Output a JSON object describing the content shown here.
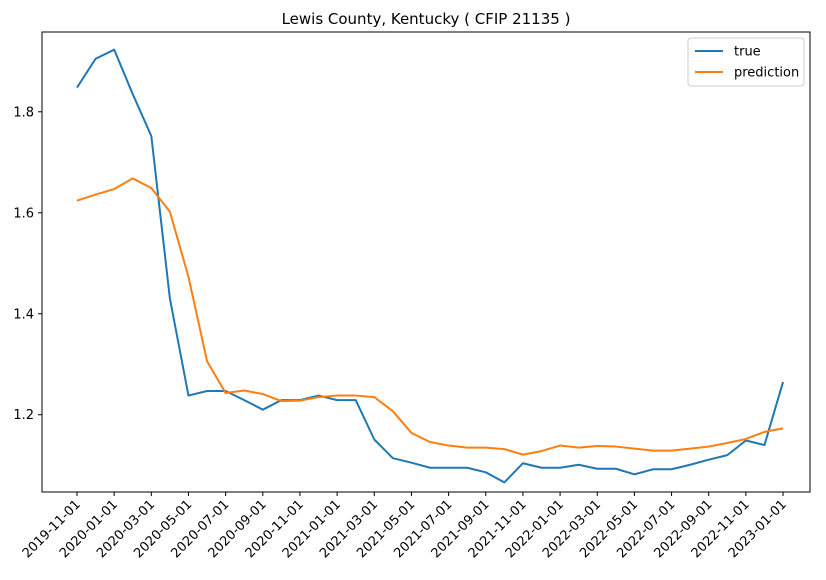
{
  "chart_data": {
    "type": "line",
    "title": "Lewis County, Kentucky ( CFIP 21135 )",
    "xlabel": "",
    "ylabel": "",
    "x": [
      "2019-11-01",
      "2019-12-01",
      "2020-01-01",
      "2020-02-01",
      "2020-03-01",
      "2020-04-01",
      "2020-05-01",
      "2020-06-01",
      "2020-07-01",
      "2020-08-01",
      "2020-09-01",
      "2020-10-01",
      "2020-11-01",
      "2020-12-01",
      "2021-01-01",
      "2021-02-01",
      "2021-03-01",
      "2021-04-01",
      "2021-05-01",
      "2021-06-01",
      "2021-07-01",
      "2021-08-01",
      "2021-09-01",
      "2021-10-01",
      "2021-11-01",
      "2021-12-01",
      "2022-01-01",
      "2022-02-01",
      "2022-03-01",
      "2022-04-01",
      "2022-05-01",
      "2022-06-01",
      "2022-07-01",
      "2022-08-01",
      "2022-09-01",
      "2022-10-01",
      "2022-11-01",
      "2022-12-01",
      "2023-01-01"
    ],
    "x_ticks": [
      "2019-11-01",
      "2020-01-01",
      "2020-03-01",
      "2020-05-01",
      "2020-07-01",
      "2020-09-01",
      "2020-11-01",
      "2021-01-01",
      "2021-03-01",
      "2021-05-01",
      "2021-07-01",
      "2021-09-01",
      "2021-11-01",
      "2022-01-01",
      "2022-03-01",
      "2022-05-01",
      "2022-07-01",
      "2022-09-01",
      "2022-11-01",
      "2023-01-01"
    ],
    "y_ticks": [
      1.2,
      1.4,
      1.6,
      1.8
    ],
    "ylim": [
      1.047,
      1.958
    ],
    "grid": false,
    "legend_position": "top-right",
    "series": [
      {
        "name": "true",
        "color": "#1f77b4",
        "values": [
          1.848,
          1.905,
          1.923,
          1.835,
          1.752,
          1.43,
          1.238,
          1.247,
          1.247,
          1.229,
          1.21,
          1.229,
          1.229,
          1.238,
          1.229,
          1.229,
          1.151,
          1.114,
          1.105,
          1.095,
          1.095,
          1.095,
          1.086,
          1.066,
          1.104,
          1.095,
          1.095,
          1.101,
          1.093,
          1.093,
          1.082,
          1.092,
          1.092,
          1.101,
          1.111,
          1.12,
          1.149,
          1.14,
          1.265
        ]
      },
      {
        "name": "prediction",
        "color": "#ff7f0e",
        "values": [
          1.624,
          1.636,
          1.647,
          1.668,
          1.649,
          1.602,
          1.473,
          1.306,
          1.243,
          1.248,
          1.241,
          1.227,
          1.228,
          1.235,
          1.238,
          1.238,
          1.235,
          1.207,
          1.164,
          1.146,
          1.139,
          1.135,
          1.135,
          1.132,
          1.121,
          1.128,
          1.139,
          1.135,
          1.138,
          1.137,
          1.133,
          1.129,
          1.129,
          1.133,
          1.137,
          1.144,
          1.152,
          1.166,
          1.173
        ]
      }
    ]
  }
}
